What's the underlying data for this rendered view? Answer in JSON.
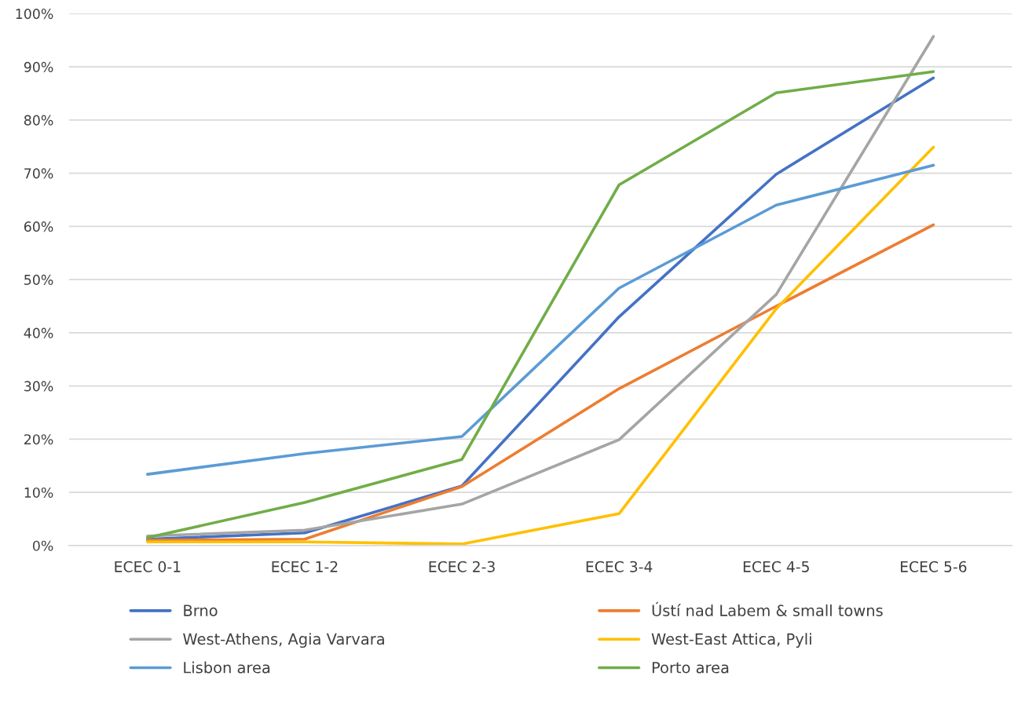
{
  "chart_data": {
    "type": "line",
    "categories": [
      "ECEC 0-1",
      "ECEC 1-2",
      "ECEC 2-3",
      "ECEC 3-4",
      "ECEC 4-5",
      "ECEC 5-6"
    ],
    "series": [
      {
        "name": "Brno",
        "color": "#4472c4",
        "values": [
          1.2,
          2.4,
          11.2,
          43,
          69.8,
          87.9
        ]
      },
      {
        "name": "Ústí nad Labem & small towns",
        "color": "#ed7d31",
        "values": [
          1.0,
          1.2,
          11.1,
          29.5,
          45,
          60.3
        ]
      },
      {
        "name": "West-Athens, Agia Varvara",
        "color": "#a5a5a5",
        "values": [
          1.8,
          2.9,
          7.8,
          19.9,
          47.2,
          95.7
        ]
      },
      {
        "name": "West-East Attica, Pyli",
        "color": "#ffc000",
        "values": [
          0.7,
          0.7,
          0.3,
          6.0,
          44.5,
          74.9
        ]
      },
      {
        "name": "Lisbon area",
        "color": "#5b9bd5",
        "values": [
          13.4,
          17.3,
          20.5,
          48.4,
          64,
          71.5
        ]
      },
      {
        "name": "Porto area",
        "color": "#70ad47",
        "values": [
          1.5,
          8.1,
          16.2,
          67.8,
          85.1,
          89.1
        ]
      }
    ],
    "ylim": [
      0,
      100
    ],
    "yticks": [
      {
        "value": 0,
        "label": "0%"
      },
      {
        "value": 10,
        "label": "10%"
      },
      {
        "value": 20,
        "label": "20%"
      },
      {
        "value": 30,
        "label": "30%"
      },
      {
        "value": 40,
        "label": "40%"
      },
      {
        "value": 50,
        "label": "50%"
      },
      {
        "value": 60,
        "label": "60%"
      },
      {
        "value": 70,
        "label": "70%"
      },
      {
        "value": 80,
        "label": "80%"
      },
      {
        "value": 90,
        "label": "90%"
      },
      {
        "value": 100,
        "label": "100%"
      }
    ],
    "grid": "y",
    "legend": "bottom",
    "marker": "none",
    "line_style": "solid"
  }
}
